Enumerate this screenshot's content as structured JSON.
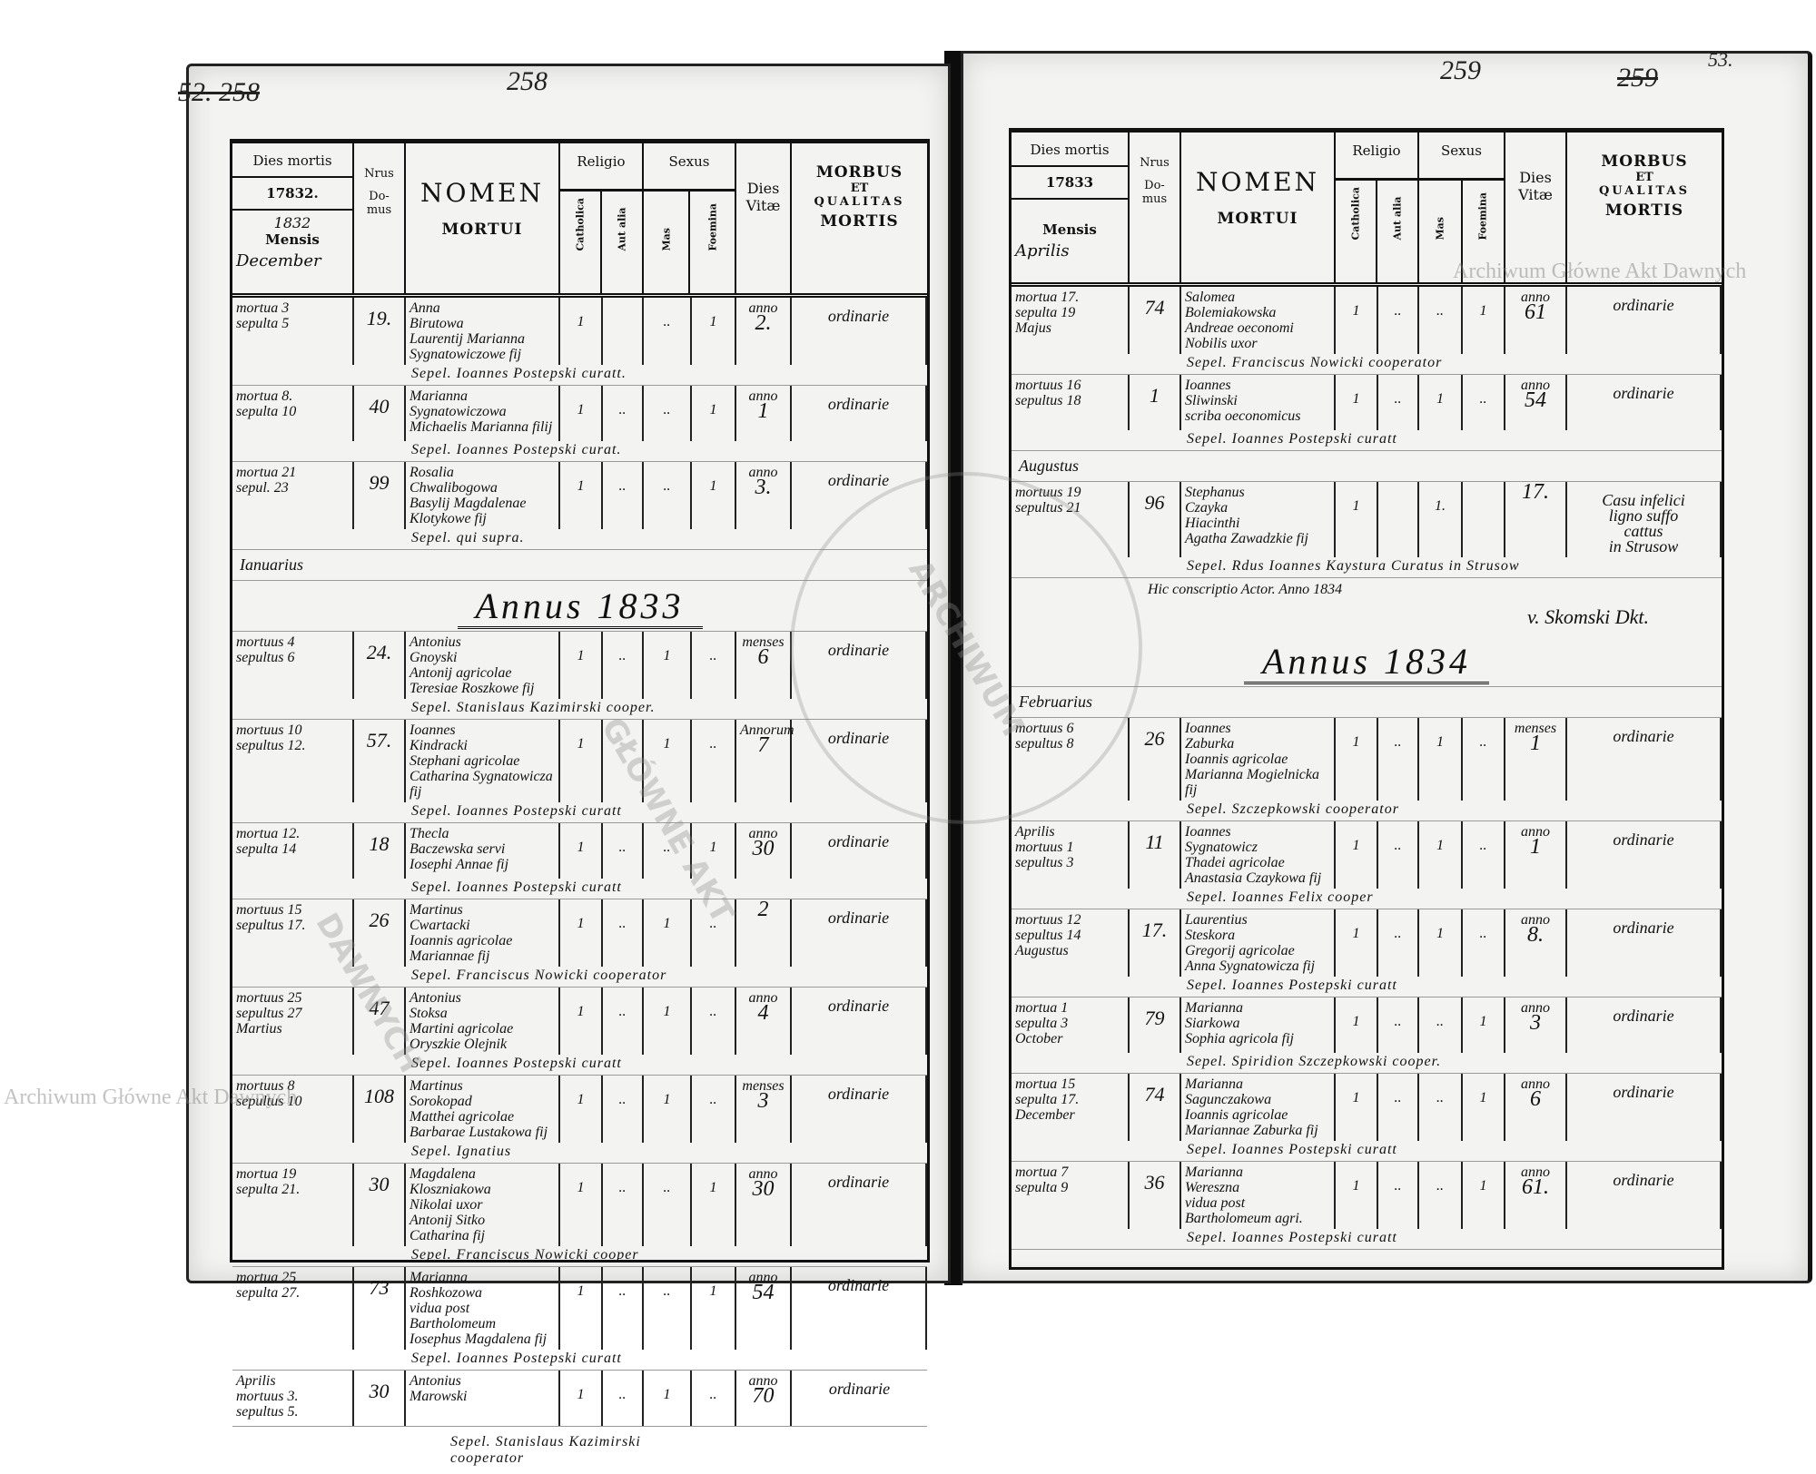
{
  "header": {
    "dies_mortis": "Dies mortis",
    "mensis": "Mensis",
    "nrus": "Nrus",
    "domus": "Do-\nmus",
    "nomen": "NOMEN",
    "mortui": "MORTUI",
    "religio": "Religio",
    "catholica": "Catholica",
    "aut_alia": "Aut alia",
    "sexus": "Sexus",
    "mas": "Mas",
    "foemina": "Foemina",
    "dies_vitae": "Dies\nVitæ",
    "morbus": "MORBUS",
    "et": "ET",
    "qualitas": "QUALITAS",
    "mortis": "MORTIS"
  },
  "left": {
    "page_number_old": "52. 258",
    "page_number": "258",
    "year_printed": "17832.",
    "year_written": "1832",
    "month_written": "December",
    "rows": [
      {
        "date": [
          "mortua 3",
          "sepulta 5"
        ],
        "domus": "19.",
        "name": [
          "Anna",
          "Birutowa",
          "Laurentij Marianna",
          "Sygnatowiczowe fij"
        ],
        "cath": "1",
        "alia": "",
        "mas": "..",
        "fem": "1",
        "vitae": [
          "anno",
          "2."
        ],
        "morbus": [
          "ordinarie"
        ],
        "burial": "Sepel. Ioannes Postepski curatt."
      },
      {
        "date": [
          "mortua 8.",
          "sepulta 10"
        ],
        "domus": "40",
        "name": [
          "Marianna",
          "Sygnatowiczowa",
          "Michaelis Marianna filij"
        ],
        "cath": "1",
        "alia": "..",
        "mas": "..",
        "fem": "1",
        "vitae": [
          "anno",
          "1"
        ],
        "morbus": [
          "ordinarie"
        ],
        "burial": "Sepel. Ioannes Postepski curat."
      },
      {
        "date": [
          "mortua 21",
          "sepul. 23"
        ],
        "domus": "99",
        "name": [
          "Rosalia",
          "Chwalibogowa",
          "Basylij Magdalenae",
          "Klotykowe fij"
        ],
        "cath": "1",
        "alia": "..",
        "mas": "..",
        "fem": "1",
        "vitae": [
          "anno",
          "3."
        ],
        "morbus": [
          "ordinarie"
        ],
        "burial": "Sepel. qui supra."
      },
      {
        "type": "month",
        "label": "Ianuarius"
      },
      {
        "type": "annus",
        "label": "Annus 1833"
      },
      {
        "date": [
          "mortuus 4",
          "sepultus 6"
        ],
        "domus": "24.",
        "name": [
          "Antonius",
          "Gnoyski",
          "Antonij agricolae",
          "Teresiae Roszkowe fij"
        ],
        "cath": "1",
        "alia": "..",
        "mas": "1",
        "fem": "..",
        "vitae": [
          "menses",
          "6"
        ],
        "morbus": [
          "ordinarie"
        ],
        "burial": "Sepel. Stanislaus Kazimirski cooper."
      },
      {
        "date": [
          "mortuus 10",
          "sepultus 12."
        ],
        "domus": "57.",
        "name": [
          "Ioannes",
          "Kindracki",
          "Stephani agricolae",
          "Catharina Sygnatowicza fij"
        ],
        "cath": "1",
        "alia": "",
        "mas": "1",
        "fem": "..",
        "vitae": [
          "Annorum",
          "7"
        ],
        "morbus": [
          "ordinarie"
        ],
        "burial": "Sepel. Ioannes Postepski curatt"
      },
      {
        "date": [
          "mortua 12.",
          "sepulta 14"
        ],
        "domus": "18",
        "name": [
          "Thecla",
          "Baczewska servi",
          "Iosephi Annae fij"
        ],
        "cath": "1",
        "alia": "..",
        "mas": "..",
        "fem": "1",
        "vitae": [
          "anno",
          "30"
        ],
        "morbus": [
          "ordinarie"
        ],
        "burial": "Sepel. Ioannes Postepski curatt"
      },
      {
        "date": [
          "mortuus 15",
          "sepultus 17."
        ],
        "domus": "26",
        "name": [
          "Martinus",
          "Cwartacki",
          "Ioannis agricolae",
          "Mariannae fij"
        ],
        "cath": "1",
        "alia": "..",
        "mas": "1",
        "fem": "..",
        "vitae": [
          "",
          "2"
        ],
        "morbus": [
          "ordinarie"
        ],
        "burial": "Sepel. Franciscus Nowicki cooperator"
      },
      {
        "date": [
          "mortuus 25",
          "sepultus 27",
          "Martius"
        ],
        "domus": "47",
        "name": [
          "Antonius",
          "Stoksa",
          "Martini agricolae",
          "Oryszkie Olejnik"
        ],
        "cath": "1",
        "alia": "..",
        "mas": "1",
        "fem": "..",
        "vitae": [
          "anno",
          "4"
        ],
        "morbus": [
          "ordinarie"
        ],
        "burial": "Sepel. Ioannes Postepski curatt"
      },
      {
        "date": [
          "mortuus 8",
          "sepultus 10"
        ],
        "domus": "108",
        "name": [
          "Martinus",
          "Sorokopad",
          "Matthei agricolae",
          "Barbarae Lustakowa fij"
        ],
        "cath": "1",
        "alia": "..",
        "mas": "1",
        "fem": "..",
        "vitae": [
          "menses",
          "3"
        ],
        "morbus": [
          "ordinarie"
        ],
        "burial": "Sepel. Ignatius"
      },
      {
        "date": [
          "mortua 19",
          "sepulta 21."
        ],
        "domus": "30",
        "name": [
          "Magdalena",
          "Kloszniakowa",
          "Nikolai uxor",
          "Antonij Sitko",
          "Catharina fij"
        ],
        "cath": "1",
        "alia": "..",
        "mas": "..",
        "fem": "1",
        "vitae": [
          "anno",
          "30"
        ],
        "morbus": [
          "ordinarie"
        ],
        "burial": "Sepel. Franciscus Nowicki cooper"
      },
      {
        "date": [
          "mortua 25",
          "sepulta 27."
        ],
        "domus": "73",
        "name": [
          "Marianna",
          "Roshkozowa",
          "vidua post Bartholomeum",
          "Iosephus Magdalena fij"
        ],
        "cath": "1",
        "alia": "..",
        "mas": "..",
        "fem": "1",
        "vitae": [
          "anno",
          "54"
        ],
        "morbus": [
          "ordinarie"
        ],
        "burial": "Sepel. Ioannes Postepski curatt"
      },
      {
        "date": [
          "Aprilis",
          "mortuus 3.",
          "sepultus 5."
        ],
        "domus": "30",
        "name": [
          "Antonius",
          "Marowski"
        ],
        "cath": "1",
        "alia": "..",
        "mas": "1",
        "fem": "..",
        "vitae": [
          "anno",
          "70"
        ],
        "morbus": [
          "ordinarie"
        ],
        "burial": ""
      }
    ],
    "footer": "Sepel. Stanislaus Kazimirski cooperator"
  },
  "right": {
    "page_number": "259",
    "page_number_old": "259",
    "page_number_new": "53.",
    "year_printed": "17833",
    "month_written": "Aprilis",
    "rows": [
      {
        "date": [
          "mortua 17.",
          "sepulta 19",
          "Majus"
        ],
        "domus": "74",
        "name": [
          "Salomea",
          "Bolemiakowska",
          "Andreae oeconomi",
          "Nobilis uxor"
        ],
        "cath": "1",
        "alia": "..",
        "mas": "..",
        "fem": "1",
        "vitae": [
          "anno",
          "61"
        ],
        "morbus": [
          "ordinarie"
        ],
        "burial": "Sepel. Franciscus Nowicki cooperator"
      },
      {
        "date": [
          "mortuus 16",
          "sepultus 18"
        ],
        "domus": "1",
        "name": [
          "Ioannes",
          "Sliwinski",
          "scriba oeconomicus"
        ],
        "cath": "1",
        "alia": "..",
        "mas": "1",
        "fem": "..",
        "vitae": [
          "anno",
          "54"
        ],
        "morbus": [
          "ordinarie"
        ],
        "burial": "Sepel. Ioannes Postepski curatt"
      },
      {
        "type": "month",
        "label": "Augustus"
      },
      {
        "date": [
          "mortuus 19",
          "sepultus 21"
        ],
        "domus": "96",
        "name": [
          "Stephanus",
          "Czayka",
          "Hiacinthi",
          "Agatha Zawadzkie fij"
        ],
        "cath": "1",
        "alia": "",
        "mas": "1.",
        "fem": "",
        "vitae": [
          "",
          "17."
        ],
        "morbus": [
          "Casu infelici",
          "ligno suffo",
          "cattus",
          "in Strusow"
        ],
        "burial": "Sepel. Rdus Ioannes Kaystura Curatus in Strusow"
      },
      {
        "type": "note",
        "label": "Hic conscriptio Actor. Anno 1834"
      },
      {
        "type": "sig",
        "label": "v. Skomski Dkt."
      },
      {
        "type": "annus",
        "label": "Annus 1834"
      },
      {
        "type": "month",
        "label": "Februarius"
      },
      {
        "date": [
          "mortuus 6",
          "sepultus 8"
        ],
        "domus": "26",
        "name": [
          "Ioannes",
          "Zaburka",
          "Ioannis agricolae",
          "Marianna Mogielnicka fij"
        ],
        "cath": "1",
        "alia": "..",
        "mas": "1",
        "fem": "..",
        "vitae": [
          "menses",
          "1"
        ],
        "morbus": [
          "ordinarie"
        ],
        "burial": "Sepel. Szczepkowski cooperator"
      },
      {
        "date": [
          "Aprilis",
          "mortuus 1",
          "sepultus 3"
        ],
        "domus": "11",
        "name": [
          "Ioannes",
          "Sygnatowicz",
          "Thadei agricolae",
          "Anastasia Czaykowa fij"
        ],
        "cath": "1",
        "alia": "..",
        "mas": "1",
        "fem": "..",
        "vitae": [
          "anno",
          "1"
        ],
        "morbus": [
          "ordinarie"
        ],
        "burial": "Sepel. Ioannes Felix cooper"
      },
      {
        "date": [
          "mortuus 12",
          "sepultus 14",
          "Augustus"
        ],
        "domus": "17.",
        "name": [
          "Laurentius",
          "Steskora",
          "Gregorij agricolae",
          "Anna Sygnatowicza fij"
        ],
        "cath": "1",
        "alia": "..",
        "mas": "1",
        "fem": "..",
        "vitae": [
          "anno",
          "8."
        ],
        "morbus": [
          "ordinarie"
        ],
        "burial": "Sepel. Ioannes Postepski curatt"
      },
      {
        "date": [
          "mortua 1",
          "sepulta 3",
          "October"
        ],
        "domus": "79",
        "name": [
          "Marianna",
          "Siarkowa",
          "Sophia agricola fij"
        ],
        "cath": "1",
        "alia": "..",
        "mas": "..",
        "fem": "1",
        "vitae": [
          "anno",
          "3"
        ],
        "morbus": [
          "ordinarie"
        ],
        "burial": "Sepel. Spiridion Szczepkowski cooper."
      },
      {
        "date": [
          "mortua 15",
          "sepulta 17.",
          "December"
        ],
        "domus": "74",
        "name": [
          "Marianna",
          "Sagunczakowa",
          "Ioannis agricolae",
          "Mariannae Zaburka fij"
        ],
        "cath": "1",
        "alia": "..",
        "mas": "..",
        "fem": "1",
        "vitae": [
          "anno",
          "6"
        ],
        "morbus": [
          "ordinarie"
        ],
        "burial": "Sepel. Ioannes Postepski curatt"
      },
      {
        "date": [
          "mortua 7",
          "sepulta 9"
        ],
        "domus": "36",
        "name": [
          "Marianna",
          "Wereszna",
          "vidua post",
          "Bartholomeum agri."
        ],
        "cath": "1",
        "alia": "..",
        "mas": "..",
        "fem": "1",
        "vitae": [
          "anno",
          "61."
        ],
        "morbus": [
          "ordinarie"
        ],
        "burial": "Sepel. Ioannes Postepski curatt"
      }
    ]
  },
  "watermark": "Archiwum Główne Akt Dawnych",
  "stamp": "ARCHIWUM GŁÓWNE AKT DAWNYCH"
}
